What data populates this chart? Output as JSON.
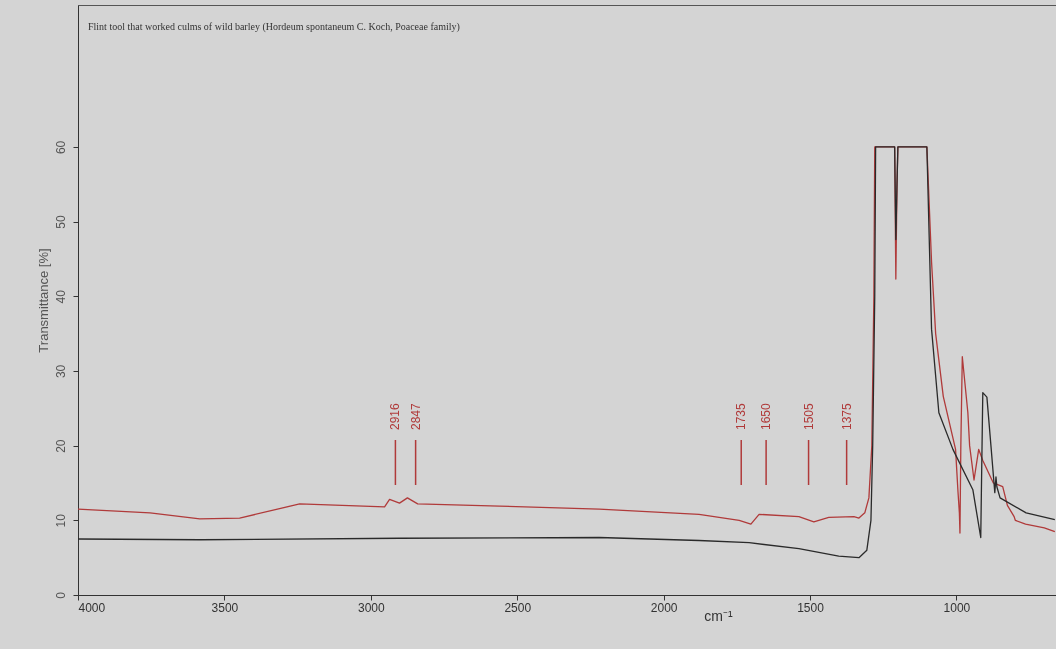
{
  "chart_data": {
    "type": "line",
    "title": "Flint tool that worked culms of wild barley (Hordeum spontaneum C. Koch, Poaceae family)",
    "xlabel": "cm⁻¹",
    "ylabel": "Transmittance [%]",
    "xlim": [
      4000,
      660
    ],
    "xticks": [
      4000,
      3500,
      3000,
      2500,
      2000,
      1500,
      1000
    ],
    "ylim": [
      0,
      79
    ],
    "yticks": [
      0,
      10,
      20,
      30,
      40,
      50,
      60
    ],
    "grid": false,
    "marker": "none",
    "line_style": "solid",
    "series": [
      {
        "color": "#b03a3a",
        "x": [
          4000,
          3754,
          3584,
          3448,
          3243,
          2953,
          2936,
          2902,
          2875,
          2840,
          2561,
          2220,
          1879,
          1742,
          1702,
          1674,
          1538,
          1487,
          1436,
          1350,
          1333,
          1313,
          1299,
          1289,
          1282,
          1279,
          1221,
          1211,
          1207,
          1203,
          1200,
          1101,
          1085,
          1071,
          1045,
          1003,
          995,
          990,
          988,
          985,
          980,
          961,
          955,
          940,
          924,
          910,
          892,
          874,
          842,
          826,
          803,
          799,
          764,
          700,
          664
        ],
        "values": [
          11.5,
          11,
          10.2,
          10.3,
          12.2,
          11.8,
          12.8,
          12.3,
          13,
          12.2,
          11.9,
          11.5,
          10.8,
          10,
          9.5,
          10.8,
          10.5,
          9.8,
          10.4,
          10.5,
          10.3,
          11,
          13,
          20,
          40,
          60,
          60,
          60,
          42.3,
          55,
          60,
          60,
          44.6,
          35,
          26.6,
          19.5,
          14,
          11,
          8.3,
          20,
          31.9,
          24.4,
          20,
          15.4,
          19.5,
          18,
          16.5,
          15,
          14.5,
          12,
          10.5,
          10,
          9.5,
          9,
          8.5
        ]
      },
      {
        "color": "#2a2a2a",
        "x": [
          4000,
          3584,
          2902,
          2220,
          1879,
          1708,
          1538,
          1402,
          1333,
          1306,
          1292,
          1286,
          1279,
          1276,
          1221,
          1211,
          1207,
          1203,
          1200,
          1101,
          1085,
          1060,
          1012,
          944,
          917,
          910,
          896,
          882,
          869,
          865,
          862,
          851,
          762,
          664
        ],
        "values": [
          7.5,
          7.4,
          7.6,
          7.7,
          7.3,
          7.0,
          6.2,
          5.2,
          5.0,
          6,
          10,
          20,
          40,
          60,
          60,
          60,
          47.6,
          55,
          60,
          60,
          35.6,
          24.4,
          19.5,
          14.1,
          7.7,
          27.1,
          26.5,
          19.9,
          13.7,
          15.8,
          14.5,
          13,
          11,
          10.1
        ]
      }
    ],
    "ref_lines": [
      {
        "axis": "x",
        "value": 2916,
        "label": "2916",
        "color": "#b03a3a"
      },
      {
        "axis": "x",
        "value": 2847,
        "label": "2847",
        "color": "#b03a3a"
      },
      {
        "axis": "x",
        "value": 1735,
        "label": "1735",
        "color": "#b03a3a"
      },
      {
        "axis": "x",
        "value": 1650,
        "label": "1650",
        "color": "#b03a3a"
      },
      {
        "axis": "x",
        "value": 1505,
        "label": "1505",
        "color": "#b03a3a"
      },
      {
        "axis": "x",
        "value": 1375,
        "label": "1375",
        "color": "#b03a3a"
      }
    ]
  }
}
